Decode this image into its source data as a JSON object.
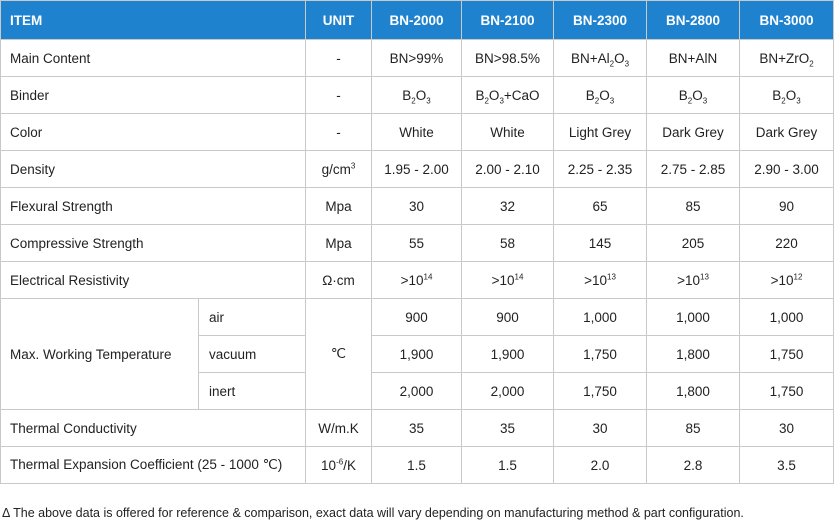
{
  "header": {
    "item": "ITEM",
    "unit": "UNIT",
    "grades": [
      "BN-2000",
      "BN-2100",
      "BN-2300",
      "BN-2800",
      "BN-3000"
    ]
  },
  "rows": {
    "main_content": {
      "label": "Main Content",
      "unit": "-",
      "values": [
        "BN>99%",
        "BN>98.5%",
        "BN+Al",
        "BN+AlN",
        "BN+ZrO"
      ],
      "al_sub1": "2",
      "al_o": "O",
      "al_sub2": "3",
      "zr_sub": "2"
    },
    "binder": {
      "label": "Binder",
      "unit": "-",
      "b": "B",
      "sub2": "2",
      "o": "O",
      "sub3": "3",
      "cao": "+CaO"
    },
    "color": {
      "label": "Color",
      "unit": "-",
      "values": [
        "White",
        "White",
        "Light Grey",
        "Dark Grey",
        "Dark Grey"
      ]
    },
    "density": {
      "label": "Density",
      "unit_base": "g/cm",
      "unit_sup": "3",
      "values": [
        "1.95 - 2.00",
        "2.00 - 2.10",
        "2.25 - 2.35",
        "2.75 - 2.85",
        "2.90 - 3.00"
      ]
    },
    "flexural": {
      "label": "Flexural Strength",
      "unit": "Mpa",
      "values": [
        "30",
        "32",
        "65",
        "85",
        "90"
      ]
    },
    "compressive": {
      "label": "Compressive Strength",
      "unit": "Mpa",
      "values": [
        "55",
        "58",
        "145",
        "205",
        "220"
      ]
    },
    "resistivity": {
      "label": "Electrical Resistivity",
      "unit": "Ω·cm",
      "base": ">10",
      "exponents": [
        "14",
        "14",
        "13",
        "13",
        "12"
      ]
    },
    "max_temp": {
      "label": "Max. Working Temperature",
      "unit": "℃",
      "air": {
        "label": "air",
        "values": [
          "900",
          "900",
          "1,000",
          "1,000",
          "1,000"
        ]
      },
      "vacuum": {
        "label": "vacuum",
        "values": [
          "1,900",
          "1,900",
          "1,750",
          "1,800",
          "1,750"
        ]
      },
      "inert": {
        "label": "inert",
        "values": [
          "2,000",
          "2,000",
          "1,750",
          "1,800",
          "1,750"
        ]
      }
    },
    "thermal_conductivity": {
      "label": "Thermal Conductivity",
      "unit": "W/m.K",
      "values": [
        "35",
        "35",
        "30",
        "85",
        "30"
      ]
    },
    "thermal_expansion": {
      "label": "Thermal Expansion Coefficient (25 - 1000 ℃)",
      "unit_base": "10",
      "unit_sup": "-6",
      "unit_tail": "/K",
      "values": [
        "1.5",
        "1.5",
        "2.0",
        "2.8",
        "3.5"
      ]
    }
  },
  "note": "Δ The above data is offered for reference & comparison, exact data will vary depending on manufacturing method & part configuration."
}
